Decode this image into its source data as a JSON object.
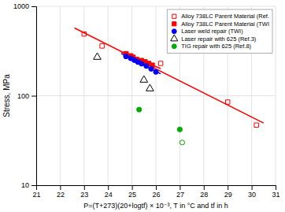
{
  "chart_data": {
    "type": "scatter",
    "xlabel": "P=(T+273)(20+logtf) × 10⁻³, T in °C and tf in h",
    "ylabel": "Stress, MPa",
    "xlim": [
      21,
      31
    ],
    "ylim": [
      10,
      1000
    ],
    "xticks": [
      21,
      22,
      23,
      24,
      25,
      26,
      27,
      28,
      29,
      30,
      31
    ],
    "yticks": [
      10,
      100,
      1000
    ],
    "log": "y",
    "grid": true,
    "legend": "upper right",
    "series": [
      {
        "name": "Alloy 738LC Parent Material (Ref.",
        "type": "scatter",
        "color": "#ff0000",
        "marker": "square-open",
        "x": [
          23.0,
          23.75,
          24.75,
          26.2,
          29.0,
          30.2
        ],
        "values": [
          490,
          360,
          295,
          230,
          85,
          47
        ]
      },
      {
        "name": "Alloy 738LC Parent Material (TWI",
        "type": "scatter",
        "color": "#ff0000",
        "marker": "square",
        "x": [
          24.75,
          24.95,
          25.05,
          25.2,
          25.4,
          25.55,
          25.7,
          25.85
        ],
        "values": [
          295,
          280,
          270,
          255,
          248,
          240,
          230,
          220
        ]
      },
      {
        "name": "Laser weld repair (TWI)",
        "type": "scatter",
        "color": "#0000ff",
        "marker": "circle",
        "x": [
          24.75,
          24.95,
          25.1,
          25.25,
          25.4,
          25.6,
          25.8,
          26.0
        ],
        "values": [
          275,
          262,
          250,
          238,
          228,
          215,
          200,
          185
        ]
      },
      {
        "name": "Laser repair with 625 (Ref.3)",
        "type": "scatter",
        "color": "#000000",
        "marker": "triangle-open",
        "x": [
          23.55,
          25.5,
          25.75
        ],
        "values": [
          270,
          150,
          120
        ]
      },
      {
        "name": "TIG repair with 625 (Ref.8)",
        "type": "scatter",
        "color": "#00aa00",
        "marker": "circle",
        "x": [
          25.3,
          27.0
        ],
        "values": [
          70,
          42
        ]
      },
      {
        "type": "scatter",
        "color": "#00aa00",
        "marker": "circle-open",
        "x": [
          27.1
        ],
        "values": [
          30
        ]
      },
      {
        "type": "line",
        "color": "#ff0000",
        "x": [
          22.6,
          30.5
        ],
        "values": [
          572.7,
          49.46
        ]
      },
      {
        "type": "line",
        "color": "#ff0000",
        "x": [
          24.55,
          26.2
        ],
        "values": [
          308.5,
          201.2
        ]
      },
      {
        "type": "line",
        "color": "#0000ff",
        "x": [
          24.55,
          26.2
        ],
        "values": [
          296.5,
          176.0
        ]
      }
    ]
  }
}
